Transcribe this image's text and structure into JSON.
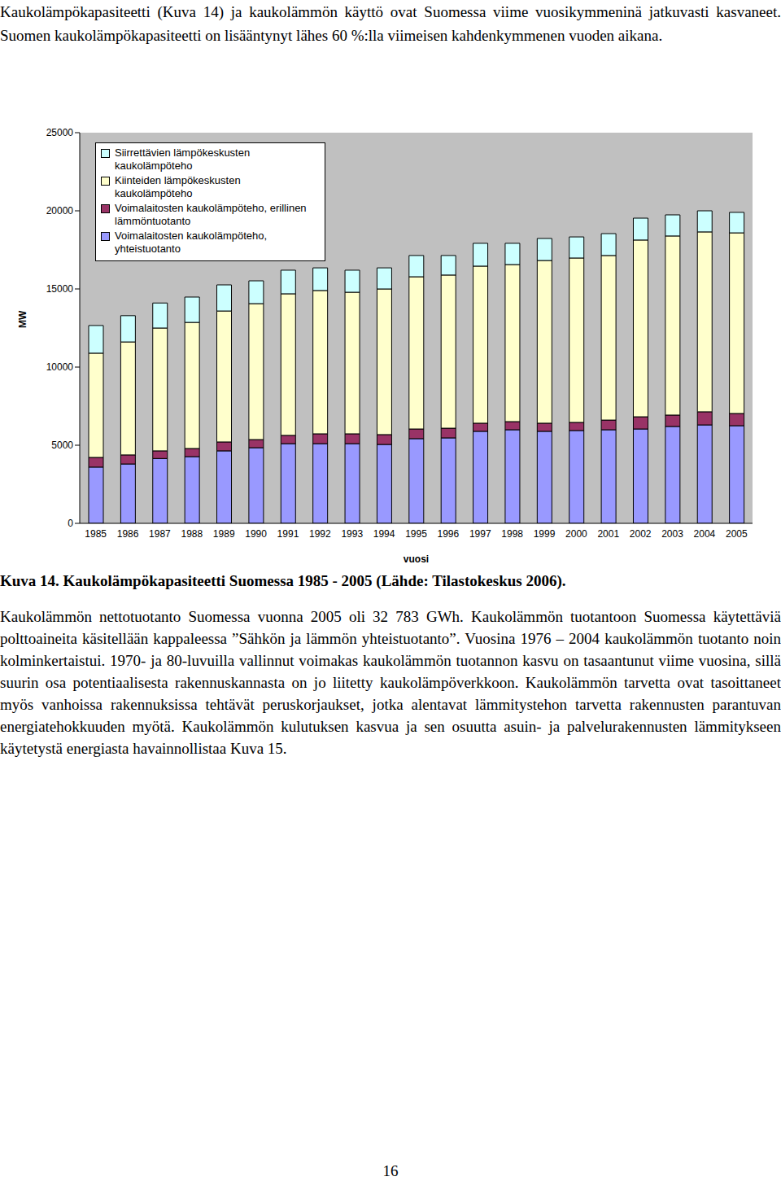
{
  "intro": "Kaukolämpökapasiteetti (Kuva 14) ja kaukolämmön käyttö ovat Suomessa viime vuosikymmeninä jatkuvasti kasvaneet. Suomen kaukolämpökapasiteetti on lisääntynyt lähes 60 %:lla viimeisen kahdenkymmenen vuoden aikana.",
  "chart_data": {
    "type": "bar",
    "stacked": true,
    "grid": false,
    "legend": "upper left",
    "x_label": "vuosi",
    "y_label": "MW",
    "categories": [
      "1985",
      "1986",
      "1987",
      "1988",
      "1989",
      "1990",
      "1991",
      "1992",
      "1993",
      "1994",
      "1995",
      "1996",
      "1997",
      "1998",
      "1999",
      "2000",
      "2001",
      "2002",
      "2003",
      "2004",
      "2005"
    ],
    "ylim": [
      0,
      25000
    ],
    "yticks": [
      0,
      5000,
      10000,
      15000,
      20000,
      25000
    ],
    "series": [
      {
        "name": "Siirrettävien lämpökeskusten kaukolämpöteho",
        "color": "#ccffff",
        "values": [
          1770,
          1680,
          1600,
          1620,
          1670,
          1460,
          1510,
          1450,
          1410,
          1350,
          1360,
          1250,
          1460,
          1360,
          1410,
          1350,
          1400,
          1400,
          1350,
          1350,
          1310
        ]
      },
      {
        "name": "Kiinteiden lämpökeskusten kaukolämpöteho",
        "color": "#ffffcc",
        "values": [
          6670,
          7230,
          7860,
          8070,
          8380,
          8700,
          9060,
          9170,
          9060,
          9320,
          9740,
          9800,
          10050,
          10050,
          10410,
          10520,
          10530,
          11310,
          11460,
          11510,
          11560
        ]
      },
      {
        "name": "Voimalaitosten kaukolämpöteho, erillinen lämmöntuotanto",
        "color": "#993366",
        "values": [
          620,
          580,
          490,
          520,
          570,
          520,
          530,
          630,
          630,
          630,
          620,
          620,
          520,
          520,
          520,
          520,
          620,
          780,
          730,
          840,
          780
        ]
      },
      {
        "name": "Voimalaitosten kaukolämpöteho, yhteistuotanto",
        "color": "#9999ff",
        "values": [
          3600,
          3800,
          4150,
          4270,
          4640,
          4840,
          5100,
          5100,
          5100,
          5050,
          5420,
          5470,
          5890,
          5990,
          5890,
          5940,
          5990,
          6040,
          6200,
          6300,
          6250
        ]
      }
    ]
  },
  "caption": "Kuva 14. Kaukolämpökapasiteetti Suomessa 1985 - 2005 (Lähde: Tilastokeskus 2006).",
  "body": "Kaukolämmön nettotuotanto Suomessa vuonna 2005 oli 32 783 GWh. Kaukolämmön tuotantoon Suomessa käytettäviä polttoaineita käsitellään kappaleessa ”Sähkön ja lämmön yhteistuotanto”. Vuosina 1976 – 2004 kaukolämmön tuotanto noin kolminkertaistui. 1970- ja 80-luvuilla vallinnut voimakas kaukolämmön tuotannon kasvu on tasaantunut viime vuosina, sillä suurin osa potentiaalisesta rakennuskannasta on jo liitetty kaukolämpöverkkoon. Kaukolämmön tarvetta ovat tasoittaneet myös vanhoissa rakennuksissa tehtävät peruskorjaukset, jotka alentavat lämmitystehon tarvetta rakennusten parantuvan energiatehokkuuden myötä. Kaukolämmön kulutuksen kasvua ja sen osuutta asuin- ja palvelurakennusten lämmitykseen käytetystä energiasta havainnollistaa Kuva 15.",
  "page_number": "16"
}
